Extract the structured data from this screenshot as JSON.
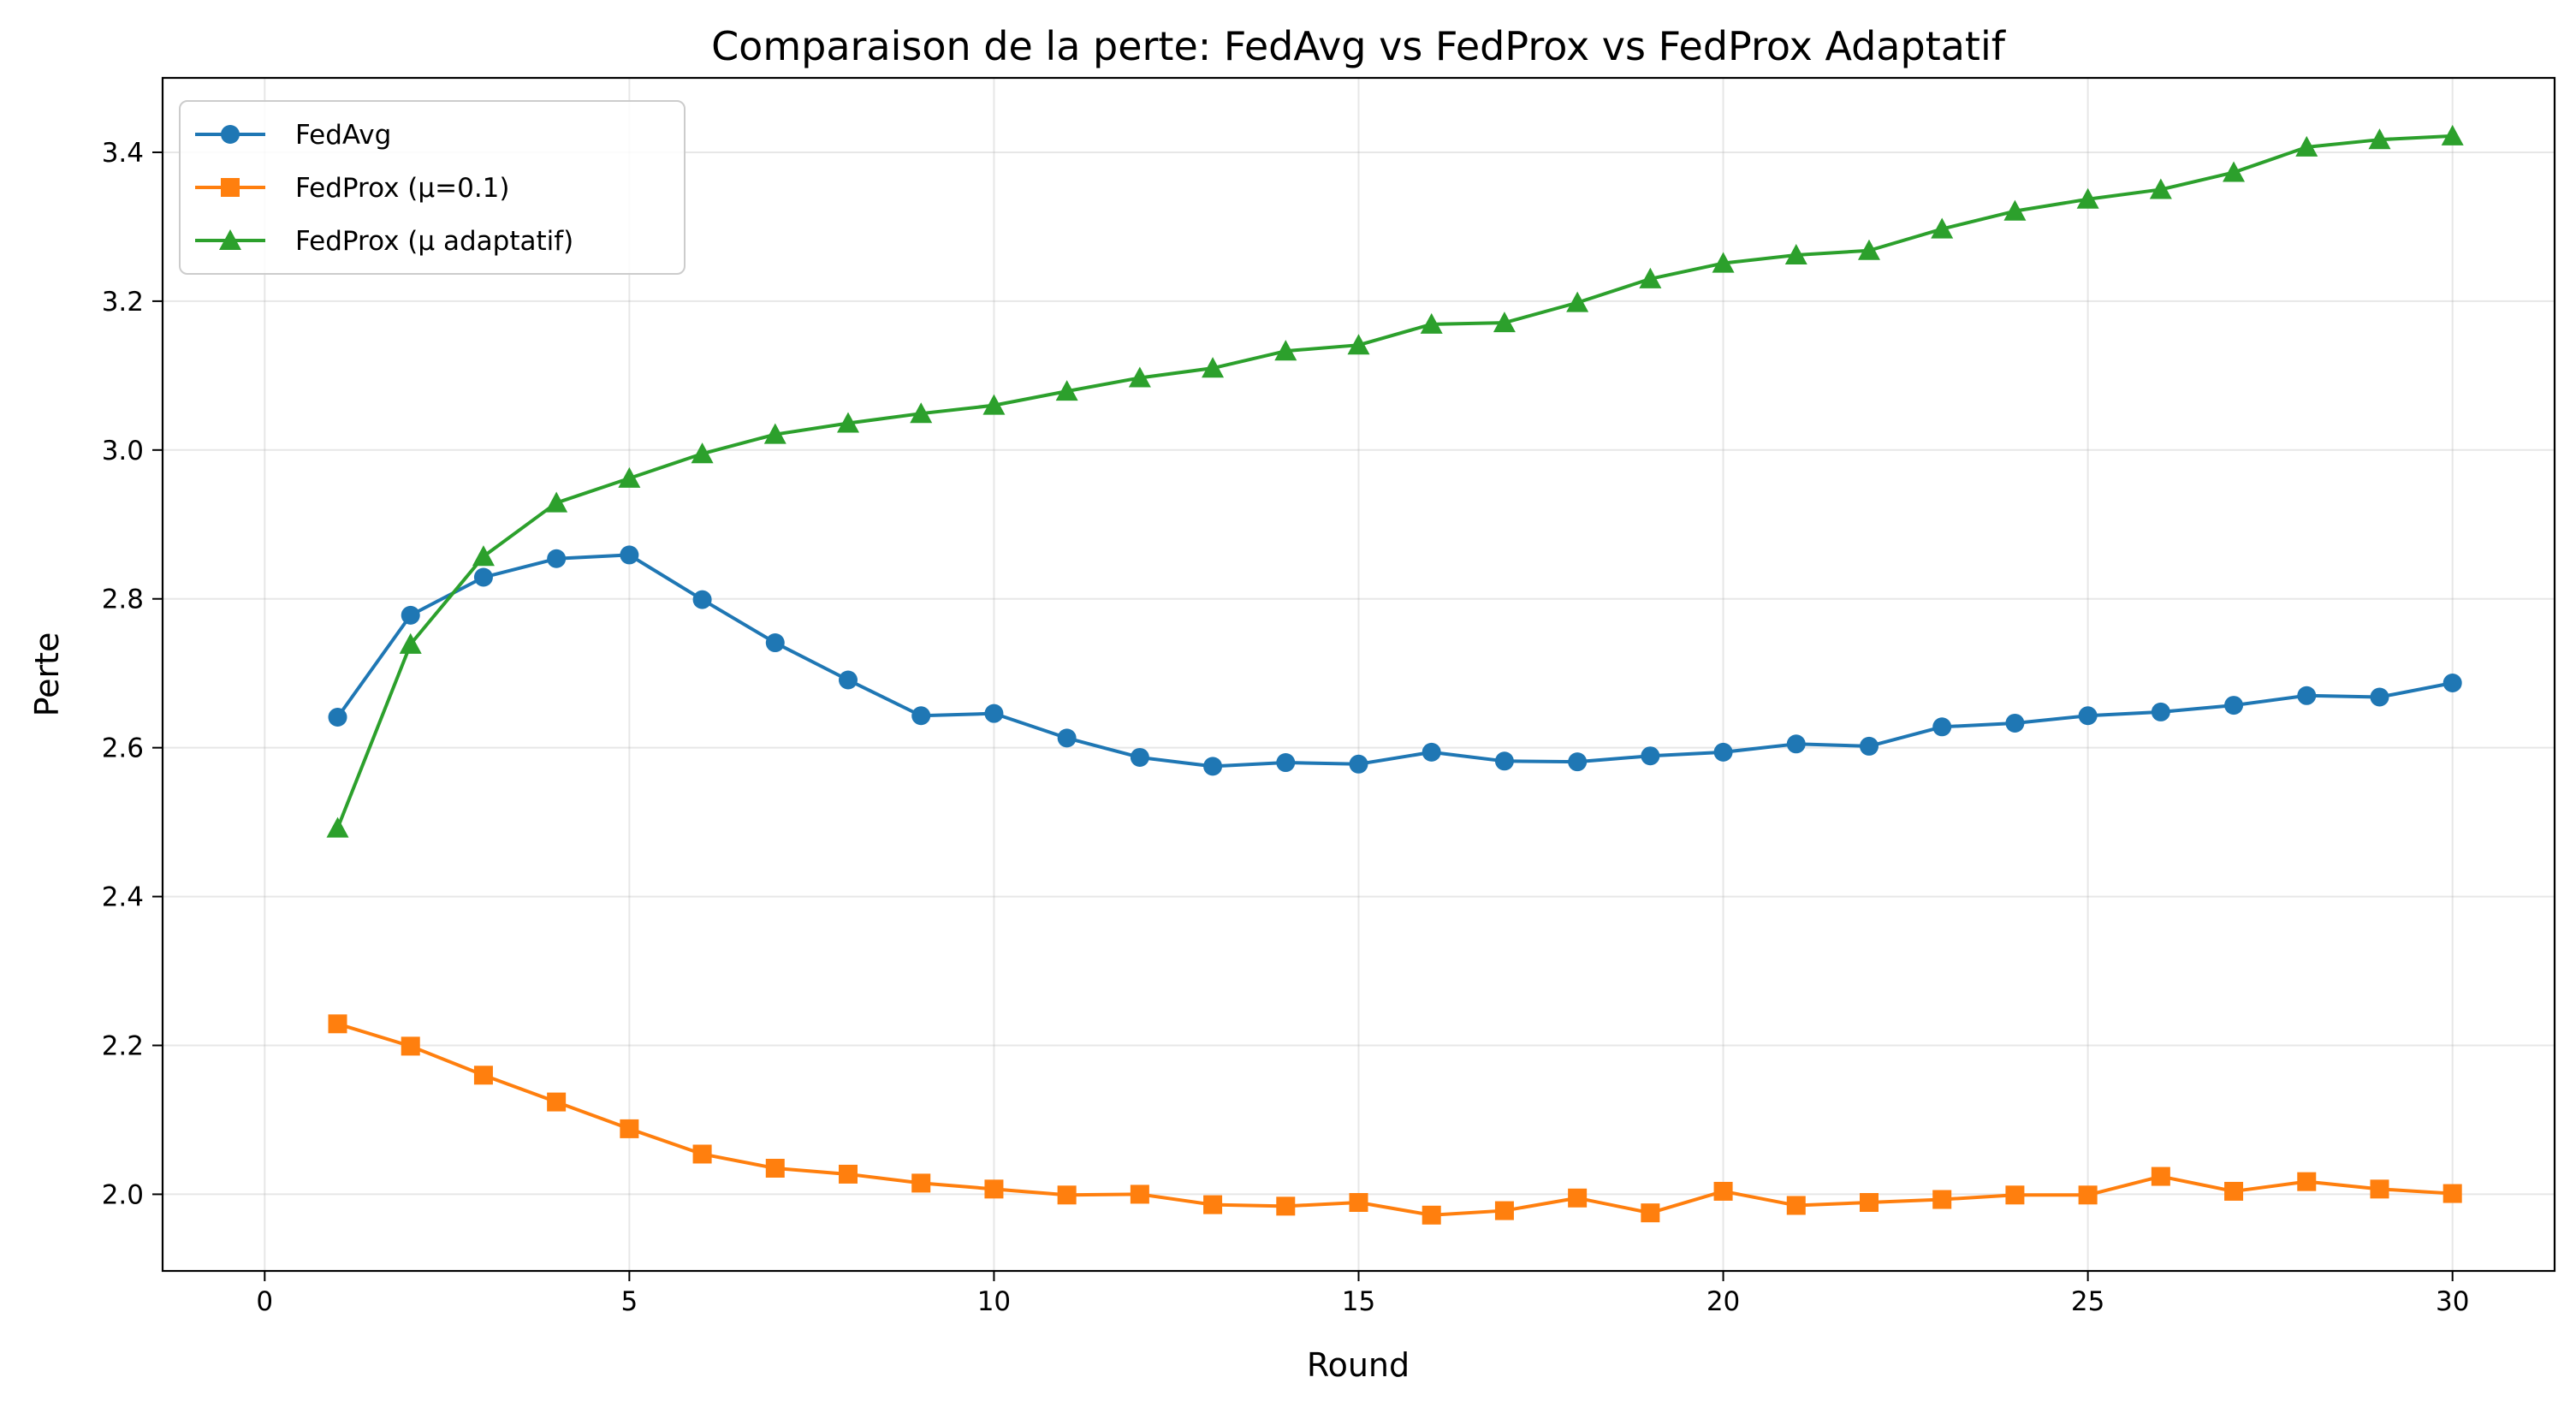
{
  "chart_data": {
    "type": "line",
    "title": "Comparaison de la perte: FedAvg vs FedProx vs FedProx Adaptatif",
    "xlabel": "Round",
    "ylabel": "Perte",
    "xlim": [
      -1.4,
      31.4
    ],
    "ylim": [
      1.897,
      3.5
    ],
    "xticks": [
      0,
      5,
      10,
      15,
      20,
      25,
      30
    ],
    "yticks": [
      2.0,
      2.2,
      2.4,
      2.6,
      2.8,
      3.0,
      3.2,
      3.4
    ],
    "grid": true,
    "legend_position": "top-left",
    "x": [
      1,
      2,
      3,
      4,
      5,
      6,
      7,
      8,
      9,
      10,
      11,
      12,
      13,
      14,
      15,
      16,
      17,
      18,
      19,
      20,
      21,
      22,
      23,
      24,
      25,
      26,
      27,
      28,
      29,
      30
    ],
    "series": [
      {
        "name": "FedAvg",
        "color": "#1f77b4",
        "marker": "circle",
        "values": [
          2.641,
          2.778,
          2.829,
          2.854,
          2.859,
          2.799,
          2.741,
          2.691,
          2.643,
          2.646,
          2.613,
          2.587,
          2.575,
          2.58,
          2.578,
          2.594,
          2.582,
          2.581,
          2.589,
          2.594,
          2.605,
          2.602,
          2.628,
          2.633,
          2.643,
          2.648,
          2.657,
          2.67,
          2.668,
          2.687
        ]
      },
      {
        "name": "FedProx (μ=0.1)",
        "color": "#ff7f0e",
        "marker": "square",
        "values": [
          2.229,
          2.199,
          2.16,
          2.124,
          2.088,
          2.054,
          2.035,
          2.027,
          2.015,
          2.007,
          1.999,
          2.0,
          1.986,
          1.984,
          1.989,
          1.972,
          1.978,
          1.995,
          1.975,
          2.004,
          1.985,
          1.989,
          1.993,
          1.999,
          1.999,
          2.024,
          2.004,
          2.017,
          2.007,
          2.001
        ]
      },
      {
        "name": "FedProx (μ adaptatif)",
        "color": "#2ca02c",
        "marker": "triangle",
        "values": [
          2.492,
          2.739,
          2.857,
          2.929,
          2.962,
          2.995,
          3.021,
          3.036,
          3.049,
          3.06,
          3.079,
          3.097,
          3.11,
          3.133,
          3.141,
          3.169,
          3.171,
          3.198,
          3.23,
          3.251,
          3.262,
          3.268,
          3.297,
          3.321,
          3.337,
          3.35,
          3.373,
          3.407,
          3.417,
          3.422
        ]
      }
    ]
  }
}
